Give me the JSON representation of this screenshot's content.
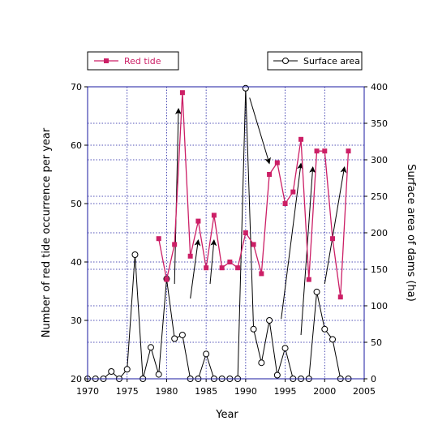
{
  "chart_data": {
    "type": "line",
    "xlabel": "Year",
    "ylabel_left": "Number of red tide occurrence per year",
    "ylabel_right": "Surface area of dams (ha)",
    "xlim": [
      1970,
      2005
    ],
    "xticks": [
      1970,
      1975,
      1980,
      1985,
      1990,
      1995,
      2000,
      2005
    ],
    "ylim_left": [
      20,
      70
    ],
    "yticks_left": [
      20,
      30,
      40,
      50,
      60,
      70
    ],
    "ylim_right": [
      0,
      400
    ],
    "yticks_right": [
      0,
      50,
      100,
      150,
      200,
      250,
      300,
      350,
      400
    ],
    "grid": true,
    "legend_placement": "top",
    "series": [
      {
        "name": "Red tide",
        "axis": "left",
        "color": "#cc1f66",
        "marker": "square-filled",
        "x": [
          1979,
          1980,
          1981,
          1982,
          1983,
          1984,
          1985,
          1986,
          1987,
          1988,
          1989,
          1990,
          1991,
          1992,
          1993,
          1994,
          1995,
          1996,
          1997,
          1998,
          1999,
          2000,
          2001,
          2002,
          2003
        ],
        "y": [
          44,
          37,
          43,
          69,
          41,
          47,
          39,
          48,
          39,
          40,
          39,
          45,
          43,
          38,
          55,
          57,
          50,
          52,
          61,
          37,
          59,
          59,
          44,
          34,
          59
        ]
      },
      {
        "name": "Surface area",
        "axis": "right",
        "color": "#000000",
        "marker": "circle-open",
        "x": [
          1970,
          1971,
          1972,
          1973,
          1974,
          1975,
          1976,
          1977,
          1978,
          1979,
          1980,
          1981,
          1982,
          1983,
          1984,
          1985,
          1986,
          1987,
          1988,
          1989,
          1990,
          1991,
          1992,
          1993,
          1994,
          1995,
          1996,
          1997,
          1998,
          1999,
          2000,
          2001,
          2002,
          2003
        ],
        "y": [
          0,
          0,
          0,
          10,
          0,
          13,
          170,
          0,
          43,
          6,
          137,
          55,
          60,
          0,
          0,
          34,
          0,
          0,
          0,
          0,
          398,
          68,
          22,
          80,
          5,
          42,
          0,
          0,
          0,
          119,
          68,
          54,
          0,
          0
        ]
      }
    ],
    "annotations": [
      {
        "type": "arrow",
        "from": [
          1981,
          130
        ],
        "to": [
          1981.5,
          370
        ]
      },
      {
        "type": "arrow",
        "from": [
          1983,
          110
        ],
        "to": [
          1984,
          190
        ]
      },
      {
        "type": "arrow",
        "from": [
          1985.5,
          130
        ],
        "to": [
          1986,
          190
        ]
      },
      {
        "type": "arrow",
        "from": [
          1990.5,
          385
        ],
        "to": [
          1993,
          295
        ]
      },
      {
        "type": "arrow",
        "from": [
          1994.5,
          82
        ],
        "to": [
          1997,
          295
        ]
      },
      {
        "type": "arrow",
        "from": [
          1997,
          60
        ],
        "to": [
          1998.5,
          290
        ]
      },
      {
        "type": "arrow",
        "from": [
          2000,
          130
        ],
        "to": [
          2002.5,
          290
        ]
      }
    ]
  },
  "legend": {
    "red_tide_label": "Red tide",
    "surface_area_label": "Surface area"
  }
}
